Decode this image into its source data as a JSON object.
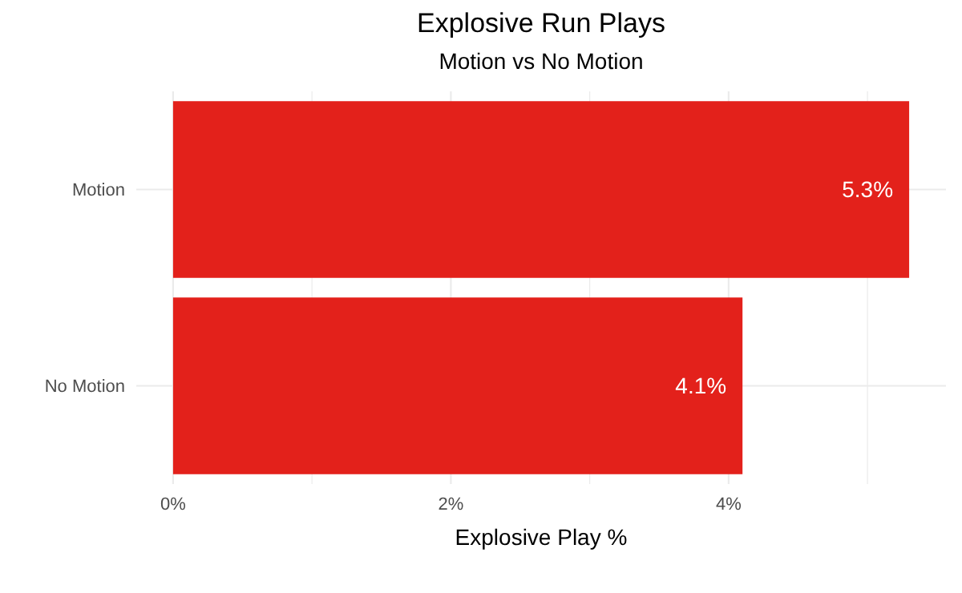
{
  "chart_data": {
    "type": "bar",
    "orientation": "horizontal",
    "title": "Explosive Run Plays",
    "subtitle": "Motion vs No Motion",
    "xlabel": "Explosive Play %",
    "categories": [
      "Motion",
      "No Motion"
    ],
    "values": [
      5.3,
      4.1
    ],
    "color": "#e3211b",
    "value_labels": [
      "5.3%",
      "4.1%"
    ],
    "xlim": [
      -0.265,
      5.565
    ],
    "xticks": [
      {
        "value": 0,
        "label": "0%"
      },
      {
        "value": 1,
        "label": null
      },
      {
        "value": 2,
        "label": "2%"
      },
      {
        "value": 3,
        "label": null
      },
      {
        "value": 4,
        "label": "4%"
      },
      {
        "value": 5,
        "label": null
      }
    ],
    "grid": true
  }
}
